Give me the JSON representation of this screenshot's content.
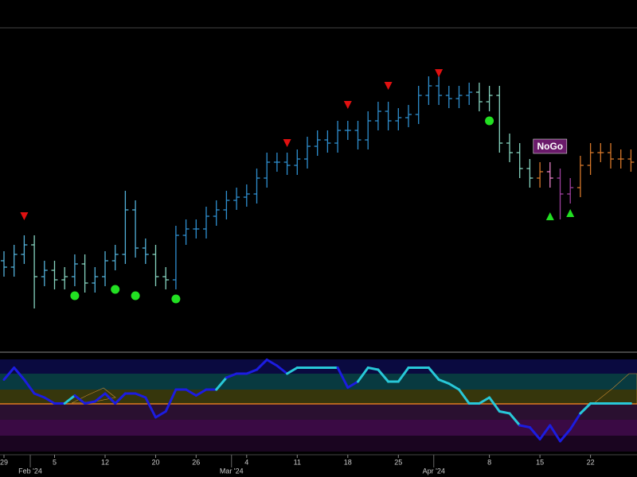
{
  "chart_data": {
    "type": "ohlc",
    "nogo_label": "NoGo",
    "ylim": [
      0,
      100
    ],
    "open": [
      28,
      26,
      30,
      33,
      23,
      25,
      22,
      23,
      27,
      21,
      23,
      28,
      30,
      44,
      32,
      30,
      23,
      22,
      36,
      38,
      38,
      42,
      44,
      47,
      48,
      49,
      54,
      59,
      59,
      58,
      60,
      64,
      66,
      65,
      69,
      69,
      66,
      72,
      75,
      72,
      73,
      74,
      80,
      83,
      80,
      79,
      80,
      81,
      78,
      80,
      65,
      62,
      57,
      54,
      56,
      54,
      49,
      51,
      58,
      62,
      62,
      60,
      60
    ],
    "high": [
      31,
      33,
      36,
      36,
      28,
      28,
      26,
      30,
      30,
      26,
      31,
      33,
      50,
      47,
      35,
      33,
      26,
      39,
      41,
      41,
      45,
      47,
      50,
      51,
      52,
      57,
      62,
      62,
      62,
      63,
      67,
      69,
      69,
      72,
      72,
      72,
      75,
      78,
      78,
      76,
      77,
      83,
      86,
      86,
      83,
      83,
      84,
      84,
      83,
      83,
      68,
      65,
      60,
      59,
      59,
      57,
      54,
      61,
      65,
      65,
      65,
      63,
      63
    ],
    "low": [
      23,
      23,
      27,
      13,
      20,
      19,
      19,
      20,
      18,
      18,
      20,
      25,
      27,
      29,
      27,
      20,
      19,
      19,
      33,
      35,
      35,
      39,
      41,
      44,
      45,
      46,
      51,
      56,
      55,
      55,
      57,
      61,
      62,
      62,
      66,
      63,
      63,
      69,
      69,
      69,
      70,
      71,
      77,
      77,
      76,
      76,
      77,
      75,
      75,
      62,
      59,
      54,
      51,
      51,
      51,
      41,
      46,
      48,
      55,
      59,
      57,
      57,
      56
    ],
    "close": [
      26,
      30,
      33,
      23,
      25,
      22,
      23,
      27,
      21,
      23,
      28,
      30,
      44,
      32,
      30,
      23,
      22,
      36,
      38,
      38,
      42,
      44,
      47,
      48,
      49,
      54,
      59,
      59,
      58,
      60,
      64,
      66,
      65,
      69,
      69,
      66,
      72,
      75,
      72,
      73,
      74,
      80,
      83,
      80,
      79,
      80,
      81,
      78,
      80,
      65,
      62,
      57,
      54,
      56,
      54,
      49,
      51,
      58,
      62,
      62,
      60,
      60,
      59
    ],
    "colors": [
      "#52b0d8",
      "#52b0d8",
      "#52b0d8",
      "#86d4c0",
      "#52b0d8",
      "#86d4c0",
      "#86d4c0",
      "#52b0d8",
      "#86d4c0",
      "#52b0d8",
      "#52b0d8",
      "#52b0d8",
      "#52b0d8",
      "#52b0d8",
      "#52b0d8",
      "#86d4c0",
      "#86d4c0",
      "#2f8fd0",
      "#2f8fd0",
      "#2f8fd0",
      "#2f8fd0",
      "#2f8fd0",
      "#2f8fd0",
      "#2f8fd0",
      "#2f8fd0",
      "#2f8fd0",
      "#2f8fd0",
      "#2f8fd0",
      "#2f8fd0",
      "#2f8fd0",
      "#2f8fd0",
      "#2f8fd0",
      "#2f8fd0",
      "#2f8fd0",
      "#2f8fd0",
      "#2f8fd0",
      "#2f8fd0",
      "#2f8fd0",
      "#2f8fd0",
      "#2f8fd0",
      "#2f8fd0",
      "#2f8fd0",
      "#2f8fd0",
      "#2f8fd0",
      "#2f8fd0",
      "#2f8fd0",
      "#2f8fd0",
      "#86d4c0",
      "#86d4c0",
      "#86d4c0",
      "#86d4c0",
      "#86d4c0",
      "#86d4c0",
      "#d8782a",
      "#e880c8",
      "#a040a0",
      "#a040a0",
      "#d8782a",
      "#d8782a",
      "#d8782a",
      "#d8782a",
      "#d8782a",
      "#d8782a"
    ],
    "down_triangles": {
      "color": "#e01010",
      "index": [
        2,
        28,
        34,
        38,
        43
      ],
      "values": [
        42,
        65,
        77,
        83,
        87
      ]
    },
    "dots": {
      "color": "#22e022",
      "index": [
        7,
        11,
        13,
        17,
        48
      ],
      "values": [
        17,
        19,
        17,
        16,
        72
      ]
    },
    "up_triangles": {
      "color": "#22e022",
      "index": [
        54,
        56
      ],
      "values": [
        42,
        43
      ]
    },
    "oscillator": {
      "ylim": [
        0,
        100
      ],
      "values": [
        74,
        86,
        74,
        60,
        56,
        50,
        50,
        58,
        50,
        52,
        60,
        50,
        60,
        60,
        56,
        36,
        42,
        64,
        64,
        58,
        64,
        64,
        76,
        80,
        80,
        84,
        94,
        88,
        80,
        86,
        86,
        86,
        86,
        86,
        66,
        72,
        86,
        84,
        72,
        72,
        86,
        86,
        86,
        74,
        70,
        64,
        50,
        50,
        56,
        42,
        40,
        28,
        26,
        14,
        28,
        12,
        24,
        40,
        50,
        50,
        50,
        50,
        50
      ],
      "colors": [
        "#1c1ce0",
        "#1c1ce0",
        "#1c1ce0",
        "#1c1ce0",
        "#1c1ce0",
        "#1c1ce0",
        "#1c1ce0",
        "#28c8d8",
        "#1c1ce0",
        "#1c1ce0",
        "#1c1ce0",
        "#1c1ce0",
        "#1c1ce0",
        "#1c1ce0",
        "#1c1ce0",
        "#1c1ce0",
        "#1c1ce0",
        "#1c1ce0",
        "#1c1ce0",
        "#1c1ce0",
        "#1c1ce0",
        "#1c1ce0",
        "#28c8d8",
        "#1c1ce0",
        "#1c1ce0",
        "#1c1ce0",
        "#1c1ce0",
        "#1c1ce0",
        "#1c1ce0",
        "#28c8d8",
        "#28c8d8",
        "#28c8d8",
        "#28c8d8",
        "#28c8d8",
        "#1c1ce0",
        "#1c1ce0",
        "#28c8d8",
        "#28c8d8",
        "#28c8d8",
        "#28c8d8",
        "#28c8d8",
        "#28c8d8",
        "#28c8d8",
        "#28c8d8",
        "#28c8d8",
        "#28c8d8",
        "#28c8d8",
        "#28c8d8",
        "#28c8d8",
        "#28c8d8",
        "#28c8d8",
        "#28c8d8",
        "#1c1ce0",
        "#1c1ce0",
        "#1c1ce0",
        "#1c1ce0",
        "#1c1ce0",
        "#1c1ce0",
        "#28c8d8",
        "#28c8d8",
        "#28c8d8",
        "#28c8d8",
        "#28c8d8"
      ]
    },
    "xticks": [
      {
        "value": 0,
        "label": "29"
      },
      {
        "value": 5,
        "label": "5"
      },
      {
        "value": 10,
        "label": "12"
      },
      {
        "value": 15,
        "label": "20"
      },
      {
        "value": 19,
        "label": "26"
      },
      {
        "value": 24,
        "label": "4"
      },
      {
        "value": 29,
        "label": "11"
      },
      {
        "value": 34,
        "label": "18"
      },
      {
        "value": 39,
        "label": "25"
      },
      {
        "value": 48,
        "label": "8"
      },
      {
        "value": 53,
        "label": "15"
      },
      {
        "value": 58,
        "label": "22"
      }
    ],
    "month_ticks": [
      {
        "value": 2.6,
        "label": "Feb '24"
      },
      {
        "value": 22.5,
        "label": "Mar '24"
      },
      {
        "value": 42.5,
        "label": "Apr '24"
      }
    ]
  }
}
